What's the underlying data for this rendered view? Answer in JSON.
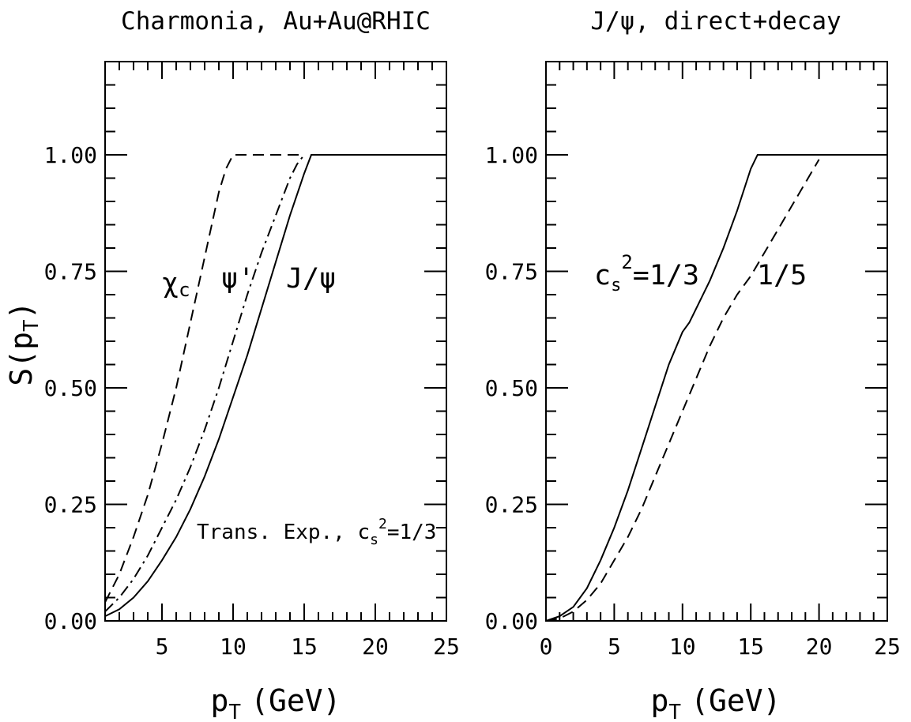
{
  "chart_data": [
    {
      "type": "line",
      "title": "Charmonia, Au+Au@RHIC",
      "xlabel": "p_T (GeV)",
      "ylabel": "S(p_T)",
      "xlim": [
        1,
        25
      ],
      "ylim": [
        0,
        1.2
      ],
      "xticks": [
        "5",
        "10",
        "15",
        "20",
        "25"
      ],
      "yticks": [
        "0.00",
        "0.25",
        "0.50",
        "0.75",
        "1.00"
      ],
      "grid": false,
      "series": [
        {
          "name": "χc",
          "style": "dashed",
          "x": [
            1,
            2,
            3,
            4,
            5,
            6,
            7,
            8,
            9,
            9.5,
            10,
            10.5,
            11,
            12,
            13,
            14,
            15
          ],
          "y": [
            0.04,
            0.1,
            0.18,
            0.27,
            0.38,
            0.5,
            0.64,
            0.78,
            0.92,
            0.97,
            1.0,
            1.0,
            1.0,
            1.0,
            1.0,
            1.0,
            1.0
          ]
        },
        {
          "name": "ψ'",
          "style": "dash-dot",
          "x": [
            1,
            2,
            3,
            4,
            5,
            6,
            7,
            8,
            9,
            10,
            11,
            12,
            13,
            14,
            14.5,
            15
          ],
          "y": [
            0.02,
            0.05,
            0.09,
            0.14,
            0.2,
            0.26,
            0.33,
            0.41,
            0.5,
            0.6,
            0.7,
            0.79,
            0.87,
            0.95,
            0.98,
            1.0
          ]
        },
        {
          "name": "J/ψ",
          "style": "solid",
          "x": [
            1,
            2,
            3,
            4,
            5,
            6,
            7,
            8,
            9,
            10,
            11,
            12,
            13,
            14,
            15,
            15.5,
            17,
            20,
            25
          ],
          "y": [
            0.01,
            0.025,
            0.05,
            0.085,
            0.13,
            0.18,
            0.24,
            0.31,
            0.39,
            0.48,
            0.57,
            0.67,
            0.77,
            0.87,
            0.96,
            1.0,
            1.0,
            1.0,
            1.0
          ]
        }
      ],
      "annotations": [
        "χ",
        "c",
        "ψ'",
        "J/ψ",
        "Trans. Exp., c",
        "s",
        "2",
        "=1/3"
      ]
    },
    {
      "type": "line",
      "title": "J/ψ, direct+decay",
      "xlabel": "p_T (GeV)",
      "ylabel": "",
      "xlim": [
        0,
        25
      ],
      "ylim": [
        0,
        1.2
      ],
      "xticks": [
        "0",
        "5",
        "10",
        "15",
        "20",
        "25"
      ],
      "yticks": [
        "0.00",
        "0.25",
        "0.50",
        "0.75",
        "1.00"
      ],
      "grid": false,
      "series": [
        {
          "name": "c_s²=1/3",
          "style": "solid",
          "x": [
            0,
            1,
            2,
            3,
            4,
            5,
            6,
            7,
            8,
            9,
            10,
            10.5,
            11,
            12,
            13,
            14,
            15,
            15.5,
            20,
            25
          ],
          "y": [
            0.0,
            0.01,
            0.03,
            0.07,
            0.13,
            0.2,
            0.28,
            0.37,
            0.46,
            0.55,
            0.62,
            0.64,
            0.67,
            0.73,
            0.8,
            0.88,
            0.97,
            1.0,
            1.0,
            1.0
          ]
        },
        {
          "name": "1/5",
          "style": "dashed",
          "x": [
            0,
            1,
            2,
            3,
            4,
            5,
            6,
            7,
            8,
            9,
            10,
            11,
            12,
            13,
            14,
            15,
            16,
            17,
            18,
            19,
            20
          ],
          "y": [
            0.0,
            0.005,
            0.02,
            0.045,
            0.08,
            0.13,
            0.18,
            0.24,
            0.31,
            0.38,
            0.45,
            0.52,
            0.59,
            0.65,
            0.7,
            0.74,
            0.79,
            0.84,
            0.89,
            0.94,
            0.99
          ]
        }
      ],
      "annotations": [
        "c",
        "s",
        "2",
        "=1/3",
        "1/5"
      ]
    }
  ],
  "labels": {
    "p": "p",
    "T": "T",
    "gev": "(GeV)",
    "S": "S(p",
    "close": ")"
  }
}
